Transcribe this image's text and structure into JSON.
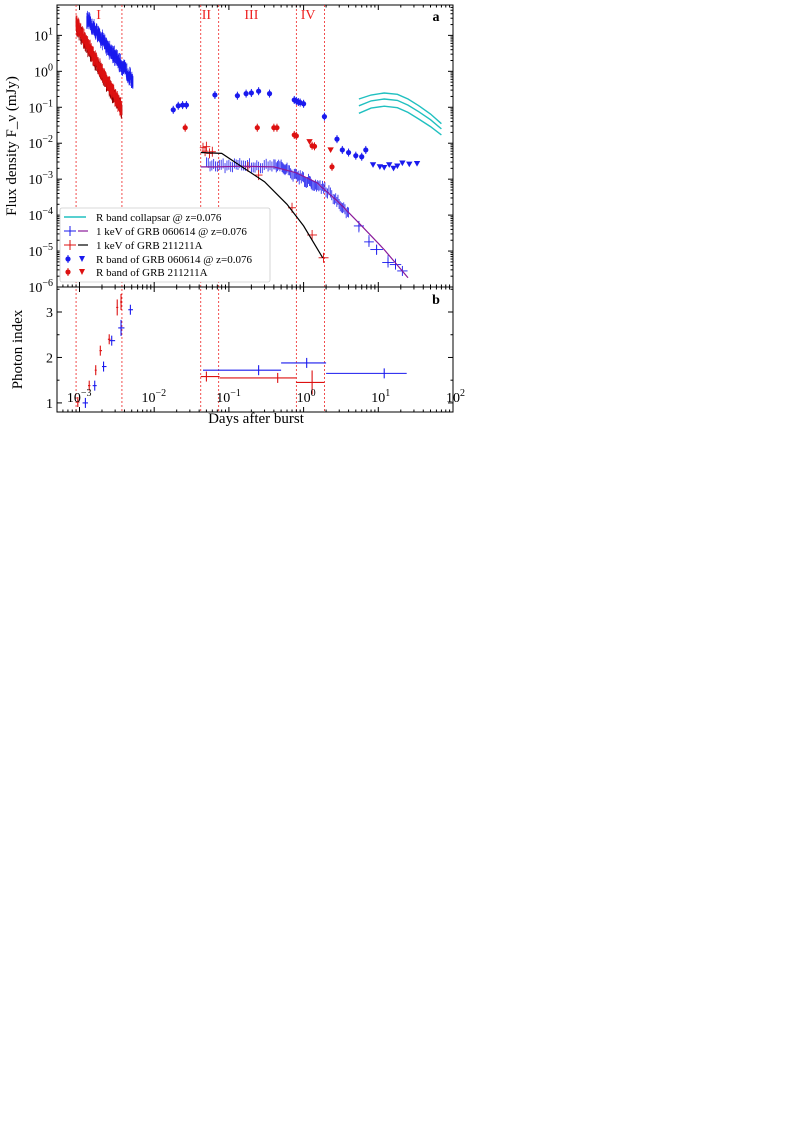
{
  "figure": {
    "xlabel": "Days after burst",
    "x_scale": "log",
    "xlim": [
      0.0005,
      100
    ],
    "x_ticks": [
      0.001,
      0.01,
      0.1,
      1,
      10,
      100
    ],
    "x_ticklabels": [
      "10^-3",
      "10^-2",
      "10^-1",
      "10^0",
      "10^1",
      "10^2"
    ]
  },
  "chart_data": [
    {
      "type": "scatter",
      "panel_label": "a",
      "ylabel": "Flux density F_ν (mJy)",
      "y_scale": "log",
      "ylim": [
        1e-06,
        70
      ],
      "y_ticks": [
        1e-06,
        1e-05,
        0.0001,
        0.001,
        0.01,
        0.1,
        1,
        10
      ],
      "y_ticklabels": [
        "10^-6",
        "10^-5",
        "10^-4",
        "10^-3",
        "10^-2",
        "10^-1",
        "10^0",
        "10^1"
      ],
      "phases": {
        "labels": [
          "I",
          "II",
          "III",
          "IV"
        ],
        "label_x": [
          0.0018,
          0.05,
          0.2,
          1.15
        ],
        "boundaries": [
          0.0009,
          0.0037,
          0.042,
          0.073,
          0.8,
          1.9
        ],
        "color": "#ee2222"
      },
      "legend": {
        "position": "lower-left",
        "entries": [
          "R band collapsar @ z=0.076",
          "1 keV of GRB 060614 @ z=0.076",
          "1 keV of GRB 211211A",
          "R band of GRB 060614 @ z=0.076",
          "R band of GRB 211211A"
        ]
      },
      "colors": {
        "grb060614": "#1a1aee",
        "grb211211a": "#dd1111",
        "collapsar": "#20c0c0",
        "model_211211a": "#000000",
        "model_060614": "#8a1a9a",
        "xray_211211a_early": "#8a0000"
      },
      "series": [
        {
          "name": "R band collapsar @ z=0.076",
          "kind": "line",
          "curves": [
            {
              "x": [
                5.5,
                8,
                12,
                18,
                25,
                35,
                50,
                70
              ],
              "y": [
                0.17,
                0.22,
                0.25,
                0.23,
                0.17,
                0.11,
                0.065,
                0.035
              ]
            },
            {
              "x": [
                5.5,
                8,
                12,
                18,
                25,
                35,
                50,
                70
              ],
              "y": [
                0.11,
                0.15,
                0.17,
                0.155,
                0.115,
                0.075,
                0.045,
                0.025
              ]
            },
            {
              "x": [
                5.5,
                8,
                12,
                18,
                25,
                35,
                50,
                70
              ],
              "y": [
                0.068,
                0.095,
                0.107,
                0.097,
                0.072,
                0.047,
                0.029,
                0.017
              ]
            }
          ]
        },
        {
          "name": "1 keV of GRB 060614 @ z=0.076",
          "kind": "xray",
          "early_band": {
            "x_start": 0.00125,
            "x_end": 0.0052,
            "y_start": 28,
            "y_end": 0.55
          },
          "late_points": [
            [
              0.05,
              0.0025
            ],
            [
              0.07,
              0.0024
            ],
            [
              0.1,
              0.0024
            ],
            [
              0.14,
              0.0026
            ],
            [
              0.2,
              0.0024
            ],
            [
              0.28,
              0.0023
            ],
            [
              0.4,
              0.0023
            ],
            [
              0.5,
              0.0023
            ],
            [
              0.6,
              0.0018
            ],
            [
              0.75,
              0.0013
            ],
            [
              0.9,
              0.0011
            ],
            [
              1.1,
              0.0009
            ],
            [
              1.3,
              0.0008
            ],
            [
              1.6,
              0.0006
            ],
            [
              2.0,
              0.0005
            ],
            [
              2.6,
              0.0003
            ],
            [
              3.2,
              0.00019
            ],
            [
              4.0,
              0.00011
            ],
            [
              5.5,
              5e-05
            ],
            [
              7.5,
              1.8e-05
            ],
            [
              9.5,
              1.1e-05
            ],
            [
              13.5,
              4.8e-06
            ],
            [
              17,
              4.2e-06
            ],
            [
              21,
              2.8e-06
            ]
          ],
          "model_x": [
            0.042,
            0.07,
            0.15,
            0.4,
            0.8,
            1.5,
            3,
            6,
            12,
            25
          ],
          "model_y": [
            0.0022,
            0.0022,
            0.0023,
            0.0022,
            0.0015,
            0.0008,
            0.00022,
            5e-05,
            1.1e-05,
            1.8e-06
          ]
        },
        {
          "name": "1 keV of GRB 211211A",
          "kind": "xray",
          "early_band": {
            "x_start": 0.0009,
            "x_end": 0.0037,
            "y_start": 19,
            "y_end": 0.08
          },
          "late_points": [
            [
              0.045,
              0.0075
            ],
            [
              0.048,
              0.006
            ],
            [
              0.05,
              0.008
            ],
            [
              0.055,
              0.0052
            ],
            [
              0.06,
              0.0058
            ],
            [
              0.18,
              0.0022
            ],
            [
              0.25,
              0.0013
            ],
            [
              0.7,
              0.00016
            ],
            [
              1.3,
              2.8e-05
            ],
            [
              1.85,
              6.5e-06
            ]
          ],
          "model_x": [
            0.042,
            0.08,
            0.15,
            0.3,
            0.6,
            1.0,
            1.8
          ],
          "model_y": [
            0.0055,
            0.0052,
            0.0022,
            0.00085,
            0.0002,
            5e-05,
            6.5e-06
          ]
        },
        {
          "name": "R band of GRB 060614 @ z=0.076",
          "kind": "optical",
          "points": [
            [
              0.018,
              0.085
            ],
            [
              0.021,
              0.11
            ],
            [
              0.024,
              0.115
            ],
            [
              0.027,
              0.115
            ],
            [
              0.065,
              0.22
            ],
            [
              0.13,
              0.21
            ],
            [
              0.17,
              0.24
            ],
            [
              0.2,
              0.25
            ],
            [
              0.25,
              0.28
            ],
            [
              0.35,
              0.24
            ],
            [
              0.75,
              0.16
            ],
            [
              0.8,
              0.15
            ],
            [
              0.85,
              0.14
            ],
            [
              0.9,
              0.135
            ],
            [
              1.0,
              0.125
            ],
            [
              1.9,
              0.055
            ],
            [
              2.8,
              0.013
            ],
            [
              3.3,
              0.0065
            ],
            [
              4.0,
              0.0055
            ],
            [
              5.0,
              0.0045
            ],
            [
              6.0,
              0.0042
            ],
            [
              6.8,
              0.0065
            ]
          ],
          "upper_limits": [
            [
              8.5,
              0.0025
            ],
            [
              10.5,
              0.0022
            ],
            [
              12,
              0.0021
            ],
            [
              14,
              0.0025
            ],
            [
              16,
              0.002
            ],
            [
              18,
              0.0023
            ],
            [
              21,
              0.0028
            ],
            [
              26,
              0.0026
            ],
            [
              33,
              0.0027
            ]
          ]
        },
        {
          "name": "R band of GRB 211211A",
          "kind": "optical",
          "points": [
            [
              0.026,
              0.027
            ],
            [
              0.24,
              0.027
            ],
            [
              0.4,
              0.027
            ],
            [
              0.44,
              0.027
            ],
            [
              0.75,
              0.017
            ],
            [
              0.8,
              0.016
            ],
            [
              1.3,
              0.0085
            ],
            [
              1.4,
              0.0082
            ],
            [
              2.4,
              0.0022
            ]
          ],
          "upper_limits": [
            [
              1.2,
              0.011
            ],
            [
              2.3,
              0.0065
            ]
          ]
        }
      ]
    },
    {
      "type": "scatter",
      "panel_label": "b",
      "ylabel": "Photon index",
      "y_scale": "linear",
      "ylim": [
        0.8,
        3.55
      ],
      "y_ticks": [
        1,
        2,
        3
      ],
      "series": [
        {
          "name": "GRB 060614",
          "color": "#1a1aee",
          "points": [
            [
              0.0012,
              1.0
            ],
            [
              0.0016,
              1.38
            ],
            [
              0.0021,
              1.8
            ],
            [
              0.0027,
              2.37
            ],
            [
              0.0036,
              2.65
            ],
            [
              0.0048,
              3.05
            ],
            [
              0.25,
              1.72
            ],
            [
              1.1,
              1.88
            ],
            [
              12,
              1.65
            ]
          ],
          "x_range": [
            [
              0.0011,
              0.0013
            ],
            [
              0.0015,
              0.0017
            ],
            [
              0.002,
              0.0023
            ],
            [
              0.0025,
              0.003
            ],
            [
              0.0033,
              0.004
            ],
            [
              0.0045,
              0.0052
            ],
            [
              0.045,
              0.5
            ],
            [
              0.5,
              2.0
            ],
            [
              2.0,
              24
            ]
          ]
        },
        {
          "name": "GRB 211211A",
          "color": "#dd1111",
          "points": [
            [
              0.00095,
              1.02
            ],
            [
              0.00135,
              1.38
            ],
            [
              0.00165,
              1.72
            ],
            [
              0.0019,
              2.15
            ],
            [
              0.0025,
              2.4
            ],
            [
              0.0032,
              3.1
            ],
            [
              0.0036,
              3.22
            ],
            [
              0.05,
              1.58
            ],
            [
              0.45,
              1.55
            ],
            [
              1.3,
              1.45
            ]
          ],
          "x_range": [
            [
              0.0009,
              0.001
            ],
            [
              0.0013,
              0.0014
            ],
            [
              0.0016,
              0.0017
            ],
            [
              0.00185,
              0.002
            ],
            [
              0.0024,
              0.0026
            ],
            [
              0.0031,
              0.0033
            ],
            [
              0.0035,
              0.0037
            ],
            [
              0.042,
              0.075
            ],
            [
              0.075,
              0.8
            ],
            [
              0.8,
              1.9
            ]
          ]
        }
      ]
    }
  ]
}
